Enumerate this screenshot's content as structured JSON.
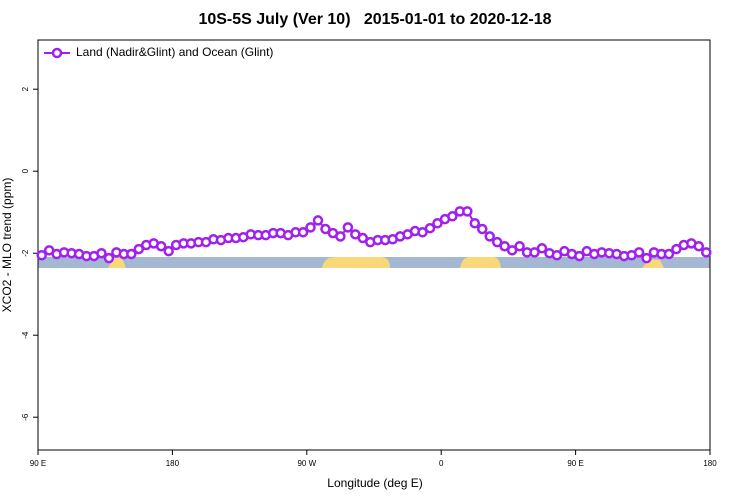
{
  "chart_data": {
    "type": "line",
    "title": "10S-5S July (Ver 10)   2015-01-01 to 2020-12-18",
    "x_label": "Longitude (deg E)",
    "y_label": "XCO2 - MLO trend (ppm)",
    "xlim": [
      90,
      540
    ],
    "xticks": [
      {
        "value": 90,
        "label": "90 E"
      },
      {
        "value": 180,
        "label": "180"
      },
      {
        "value": 270,
        "label": "90 W"
      },
      {
        "value": 360,
        "label": "0"
      },
      {
        "value": 450,
        "label": "90 E"
      },
      {
        "value": 540,
        "label": "180"
      }
    ],
    "ylim": [
      -6.8,
      3.2
    ],
    "yticks": [
      -6,
      -4,
      -2,
      0,
      2
    ],
    "legend": "top-left",
    "x": [
      92.5,
      97.5,
      102.5,
      107.5,
      112.5,
      117.5,
      122.5,
      127.5,
      132.5,
      137.5,
      142.5,
      147.5,
      152.5,
      157.5,
      162.5,
      167.5,
      172.5,
      177.5,
      182.5,
      187.5,
      192.5,
      197.5,
      202.5,
      207.5,
      212.5,
      217.5,
      222.5,
      227.5,
      232.5,
      237.5,
      242.5,
      247.5,
      252.5,
      257.5,
      262.5,
      267.5,
      272.5,
      277.5,
      282.5,
      287.5,
      292.5,
      297.5,
      302.5,
      307.5,
      312.5,
      317.5,
      322.5,
      327.5,
      332.5,
      337.5,
      342.5,
      347.5,
      352.5,
      357.5,
      362.5,
      367.5,
      372.5,
      377.5,
      382.5,
      387.5,
      392.5,
      397.5,
      402.5,
      407.5,
      412.5,
      417.5,
      422.5,
      427.5,
      432.5,
      437.5,
      442.5,
      447.5,
      452.5,
      457.5,
      462.5,
      467.5,
      472.5,
      477.5,
      482.5,
      487.5,
      492.5,
      497.5,
      502.5,
      507.5,
      512.5,
      517.5,
      522.5,
      527.5,
      532.5,
      537.5
    ],
    "series": [
      {
        "name": "Land (Nadir&Glint) and Ocean (Glint)",
        "color": "#a020f0",
        "values": [
          -2.05,
          -1.93,
          -2.02,
          -1.98,
          -2.0,
          -2.02,
          -2.07,
          -2.07,
          -2.0,
          -2.12,
          -1.98,
          -2.02,
          -2.02,
          -1.9,
          -1.8,
          -1.76,
          -1.83,
          -1.95,
          -1.8,
          -1.76,
          -1.76,
          -1.73,
          -1.73,
          -1.66,
          -1.68,
          -1.63,
          -1.63,
          -1.61,
          -1.54,
          -1.56,
          -1.56,
          -1.51,
          -1.51,
          -1.56,
          -1.49,
          -1.49,
          -1.37,
          -1.2,
          -1.41,
          -1.51,
          -1.59,
          -1.37,
          -1.54,
          -1.63,
          -1.73,
          -1.68,
          -1.68,
          -1.66,
          -1.59,
          -1.54,
          -1.46,
          -1.49,
          -1.39,
          -1.27,
          -1.17,
          -1.1,
          -0.98,
          -0.98,
          -1.27,
          -1.41,
          -1.59,
          -1.73,
          -1.83,
          -1.93,
          -1.83,
          -1.98,
          -1.98,
          -1.88,
          -2.0,
          -2.05,
          -1.95,
          -2.02,
          -2.07,
          -1.95,
          -2.02,
          -1.98,
          -2.0,
          -2.02,
          -2.07,
          -2.05,
          -1.98,
          -2.12,
          -1.98,
          -2.02,
          -2.02,
          -1.9,
          -1.8,
          -1.76,
          -1.83,
          -1.98
        ]
      }
    ]
  }
}
